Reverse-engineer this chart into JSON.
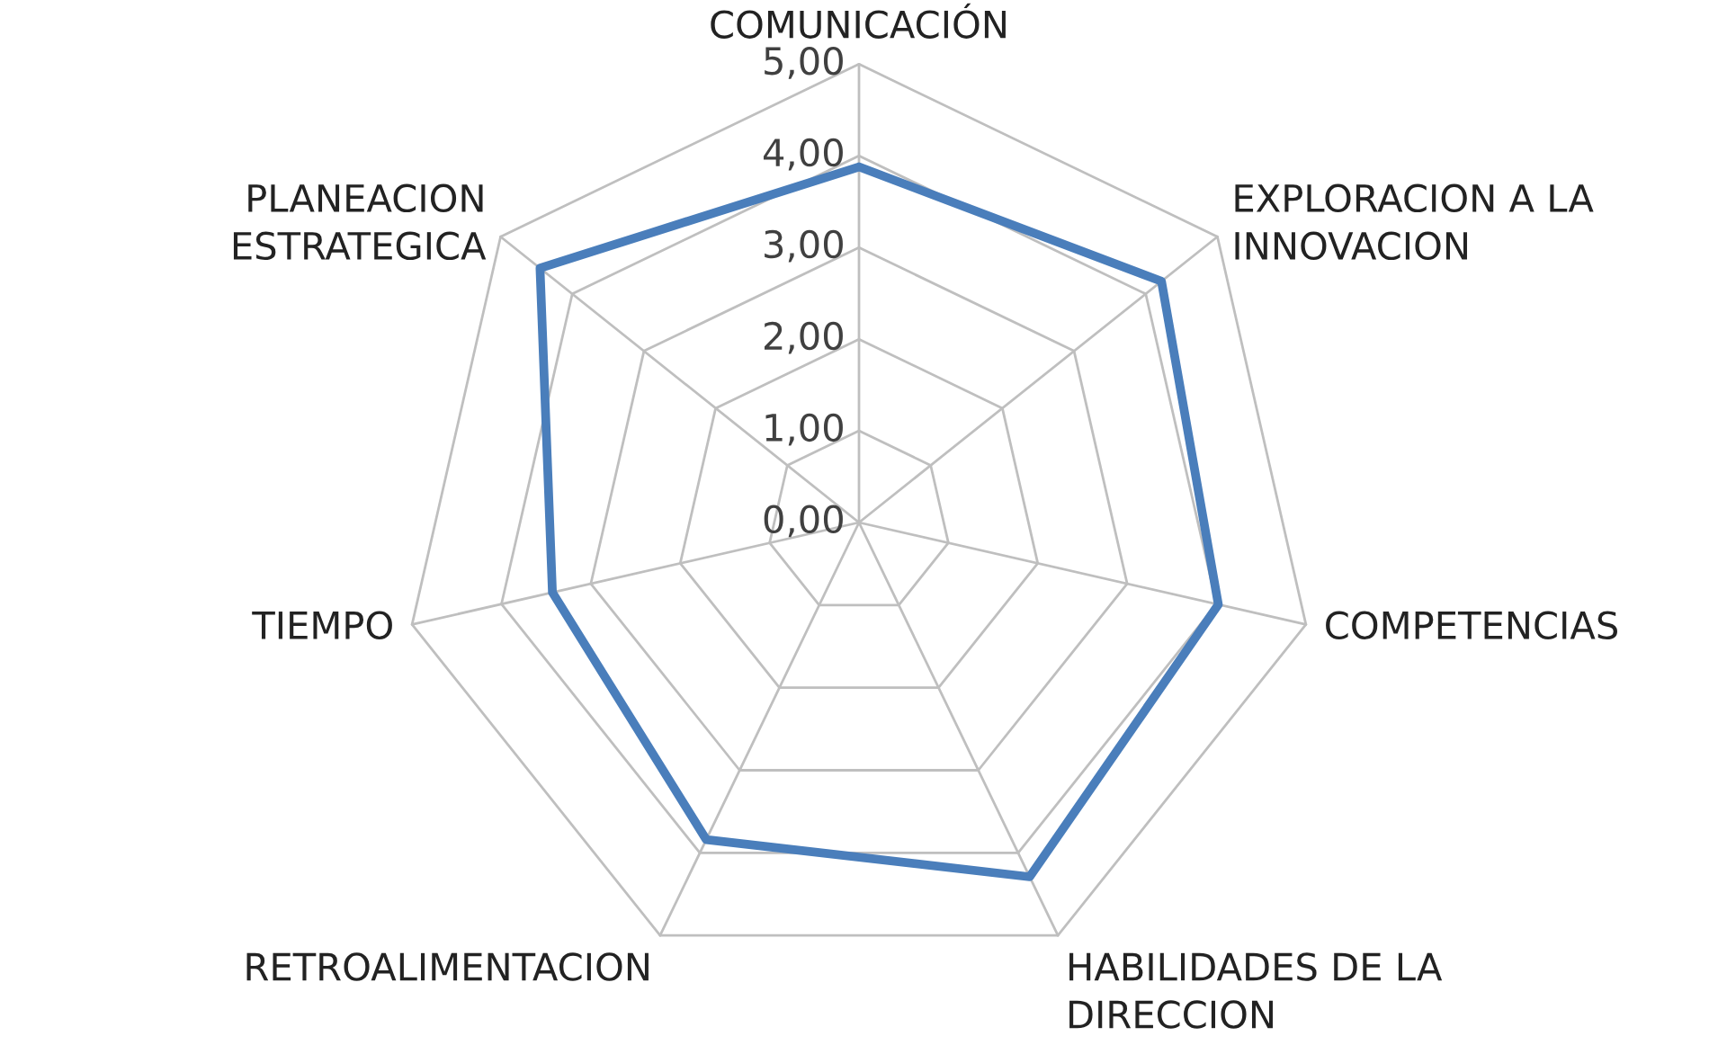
{
  "chart_data": {
    "type": "radar",
    "categories": [
      "COMUNICACIÓN",
      "EXPLORACION A LA\nINNOVACION",
      "COMPETENCIAS",
      "HABILIDADES DE LA\nDIRECCION",
      "RETROALIMENTACION",
      "TIEMPO",
      "PLANEACION\nESTRATEGICA"
    ],
    "series": [
      {
        "color": "#4a7ebb",
        "values": [
          3.88,
          4.22,
          4.02,
          4.29,
          3.84,
          3.43,
          4.45
        ]
      }
    ],
    "ylim": [
      0,
      5
    ],
    "yticks": [
      {
        "value": 0,
        "label": "0,00"
      },
      {
        "value": 1,
        "label": "1,00"
      },
      {
        "value": 2,
        "label": "2,00"
      },
      {
        "value": 3,
        "label": "3,00"
      },
      {
        "value": 4,
        "label": "4,00"
      },
      {
        "value": 5,
        "label": "5,00"
      }
    ],
    "grid": true
  }
}
